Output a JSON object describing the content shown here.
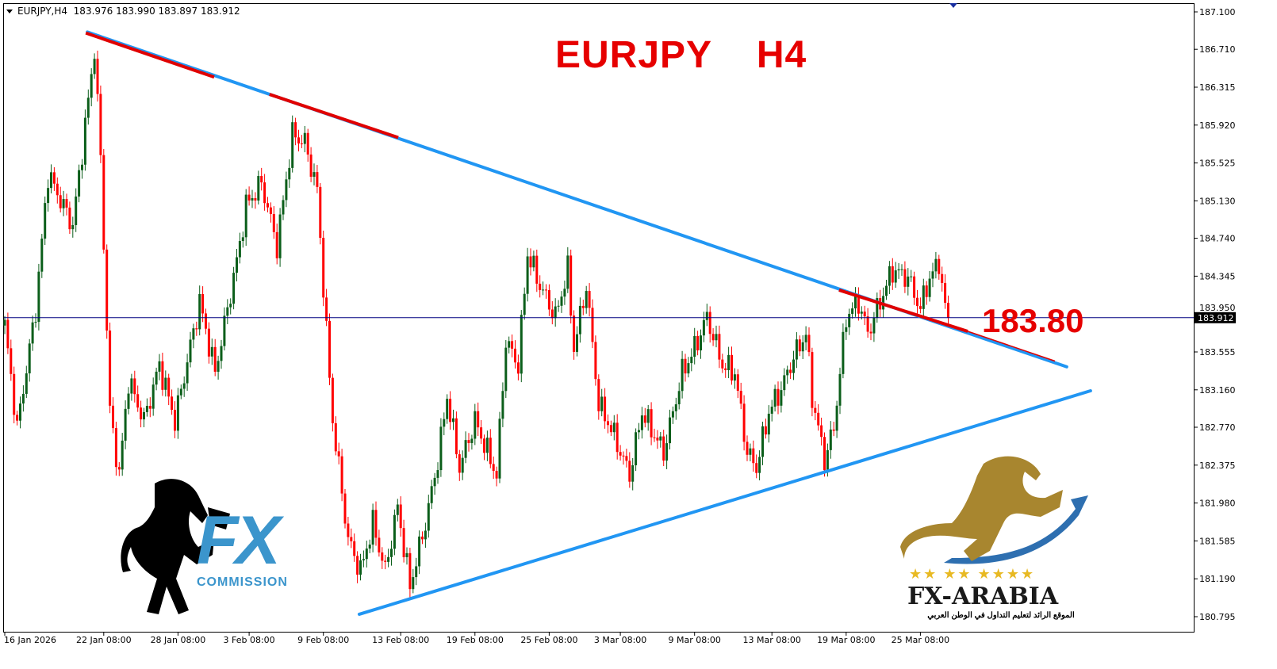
{
  "header": {
    "symbol": "EURJPY,H4",
    "ohlc": "183.976 183.990 183.897 183.912"
  },
  "annotations": {
    "title": "EURJPY  H4",
    "level_label": "183.80"
  },
  "logos": {
    "left": {
      "text_main": "FX",
      "text_sub": "COMMISSION"
    },
    "right": {
      "text_main": "FX-ARABIA",
      "stars": "★★ ★★ ★★★★",
      "tagline": "الموقع الرائد لتعليم التداول في الوطن العربي"
    }
  },
  "colors": {
    "bull": "#0b5e1a",
    "bear": "#ff0000",
    "trendline": "#2196f3",
    "highlight": "#e00000",
    "price_line": "#000080",
    "text_red": "#e60000"
  },
  "chart_data": {
    "type": "candlestick",
    "symbol": "EURJPY",
    "timeframe": "H4",
    "ylim": [
      180.795,
      187.1
    ],
    "current_price": 183.912,
    "y_ticks": [
      "187.100",
      "186.710",
      "186.315",
      "185.920",
      "185.525",
      "185.130",
      "184.740",
      "184.345",
      "183.950",
      "183.555",
      "183.160",
      "182.770",
      "182.375",
      "181.980",
      "181.585",
      "181.190",
      "180.795"
    ],
    "x_ticks": [
      {
        "label": "16 Jan 2026",
        "bar": 0
      },
      {
        "label": "22 Jan 08:00",
        "bar": 32
      },
      {
        "label": "28 Jan 08:00",
        "bar": 56
      },
      {
        "label": "3 Feb 08:00",
        "bar": 79
      },
      {
        "label": "9 Feb 08:00",
        "bar": 103
      },
      {
        "label": "13 Feb 08:00",
        "bar": 128
      },
      {
        "label": "19 Feb 08:00",
        "bar": 152
      },
      {
        "label": "25 Feb 08:00",
        "bar": 176
      },
      {
        "label": "3 Mar 08:00",
        "bar": 199
      },
      {
        "label": "9 Mar 08:00",
        "bar": 223
      },
      {
        "label": "13 Mar 08:00",
        "bar": 248
      },
      {
        "label": "19 Mar 08:00",
        "bar": 272
      },
      {
        "label": "25 Mar 08:00",
        "bar": 296
      }
    ],
    "price_path": [
      [
        0,
        183.83
      ],
      [
        4,
        182.76
      ],
      [
        10,
        184.0
      ],
      [
        14,
        185.41
      ],
      [
        22,
        184.87
      ],
      [
        28,
        186.44
      ],
      [
        29,
        186.73
      ],
      [
        31,
        185.57
      ],
      [
        34,
        182.93
      ],
      [
        37,
        182.27
      ],
      [
        40,
        183.26
      ],
      [
        45,
        182.84
      ],
      [
        50,
        183.42
      ],
      [
        55,
        182.84
      ],
      [
        63,
        184.08
      ],
      [
        68,
        183.34
      ],
      [
        75,
        184.5
      ],
      [
        78,
        185.08
      ],
      [
        83,
        185.32
      ],
      [
        88,
        184.66
      ],
      [
        93,
        185.82
      ],
      [
        97,
        185.74
      ],
      [
        101,
        185.24
      ],
      [
        104,
        183.75
      ],
      [
        106,
        182.84
      ],
      [
        111,
        181.6
      ],
      [
        115,
        181.27
      ],
      [
        119,
        181.77
      ],
      [
        123,
        181.27
      ],
      [
        127,
        181.94
      ],
      [
        131,
        181.11
      ],
      [
        136,
        181.77
      ],
      [
        140,
        182.43
      ],
      [
        143,
        183.09
      ],
      [
        147,
        182.35
      ],
      [
        152,
        182.84
      ],
      [
        159,
        182.27
      ],
      [
        162,
        183.67
      ],
      [
        166,
        183.42
      ],
      [
        169,
        184.58
      ],
      [
        173,
        184.25
      ],
      [
        178,
        183.92
      ],
      [
        182,
        184.41
      ],
      [
        184,
        183.59
      ],
      [
        188,
        184.25
      ],
      [
        192,
        183.01
      ],
      [
        196,
        182.76
      ],
      [
        202,
        182.27
      ],
      [
        206,
        182.93
      ],
      [
        213,
        182.51
      ],
      [
        219,
        183.34
      ],
      [
        223,
        183.59
      ],
      [
        227,
        183.92
      ],
      [
        232,
        183.42
      ],
      [
        236,
        183.34
      ],
      [
        240,
        182.51
      ],
      [
        243,
        182.35
      ],
      [
        247,
        182.93
      ],
      [
        251,
        183.17
      ],
      [
        255,
        183.5
      ],
      [
        259,
        183.75
      ],
      [
        261,
        183.09
      ],
      [
        265,
        182.43
      ],
      [
        268,
        182.76
      ],
      [
        272,
        183.92
      ],
      [
        276,
        184.08
      ],
      [
        279,
        183.75
      ],
      [
        283,
        184.08
      ],
      [
        287,
        184.41
      ],
      [
        292,
        184.33
      ],
      [
        296,
        184.0
      ],
      [
        298,
        184.25
      ],
      [
        302,
        184.5
      ],
      [
        304,
        184.0
      ],
      [
        305,
        183.91
      ]
    ],
    "trendlines": [
      {
        "role": "resistance",
        "from": [
          26.7,
          186.89
        ],
        "to": [
          343.3,
          183.4
        ]
      },
      {
        "role": "support",
        "from": [
          114.6,
          180.82
        ],
        "to": [
          351,
          183.15
        ]
      }
    ],
    "highlight_segments": [
      {
        "from": [
          26.2,
          186.88
        ],
        "to": [
          67.7,
          186.42
        ]
      },
      {
        "from": [
          85.6,
          186.24
        ],
        "to": [
          127.2,
          185.79
        ]
      },
      {
        "from": [
          269.7,
          184.2
        ],
        "to": [
          311.3,
          183.77
        ]
      },
      {
        "from": [
          311.3,
          183.77
        ],
        "to": [
          339.5,
          183.46
        ]
      }
    ],
    "level_annotation": 183.8
  }
}
